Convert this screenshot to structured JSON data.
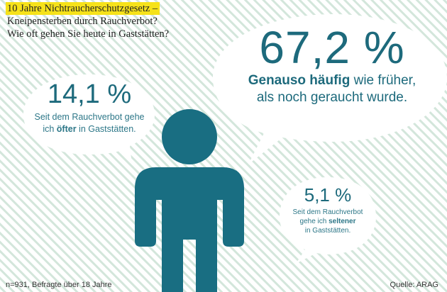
{
  "title": {
    "line1": "10 Jahre Nichtraucherschutzgesetz –",
    "line2": "Kneipensterben durch Rauchverbot?",
    "line3": "Wie oft gehen Sie heute in Gaststätten?"
  },
  "chart_data": {
    "type": "pie",
    "series": [
      {
        "value_label": "67,2 %",
        "value": 67.2,
        "label_bold": "Genauso häufig",
        "label_rest1": " wie früher,",
        "label_rest2": "als noch geraucht wurde."
      },
      {
        "value_label": "14,1 %",
        "value": 14.1,
        "label_line1": "Seit dem Rauchverbot gehe",
        "label_pre": "ich ",
        "label_bold": "öfter",
        "label_post": " in Gaststätten."
      },
      {
        "value_label": "5,1 %",
        "value": 5.1,
        "label_line1": "Seit dem Rauchverbot",
        "label_pre": "gehe ich ",
        "label_bold": "seltener",
        "label_line3": "in Gaststätten."
      }
    ]
  },
  "footer": {
    "note": "n=931, Befragte über 18 Jahre",
    "source": "Quelle: ARAG"
  },
  "colors": {
    "accent": "#1d6a7c",
    "figure": "#196e82",
    "highlight": "#f6e21a",
    "stripes": "#cfe3d8"
  }
}
